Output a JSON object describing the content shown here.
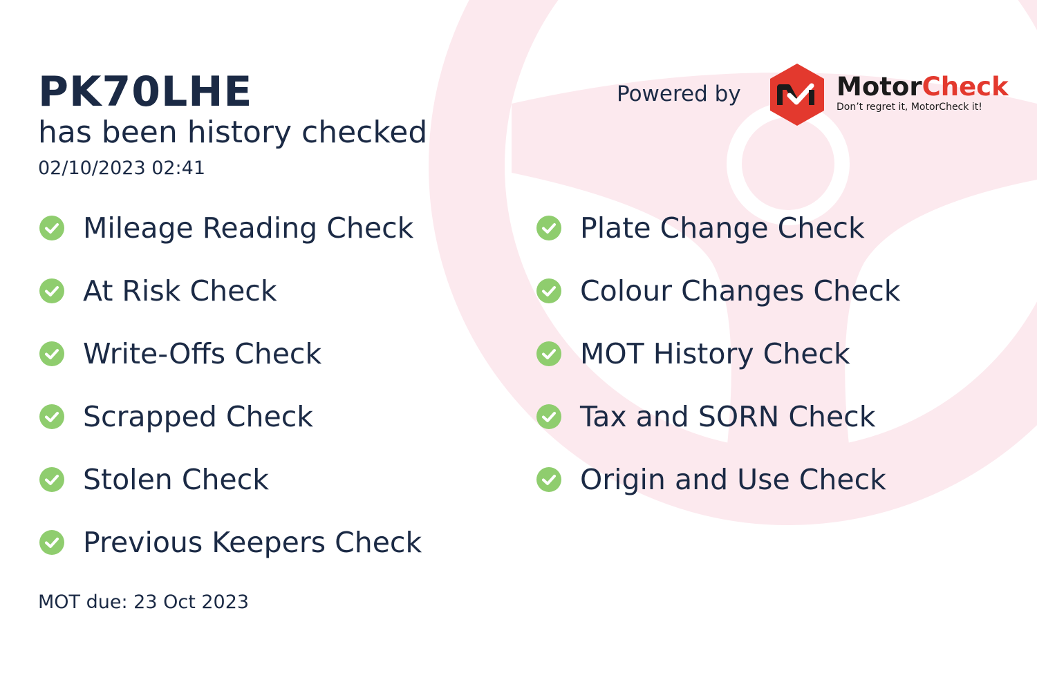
{
  "header": {
    "plate": "PK70LHE",
    "subtitle": "has been history checked",
    "timestamp": "02/10/2023 02:41"
  },
  "branding": {
    "powered_by": "Powered by",
    "brand_part1": "Motor",
    "brand_part2": "Check",
    "tagline": "Don’t regret it, MotorCheck it!",
    "brand_color": "#e3392e"
  },
  "checks_left": [
    "Mileage Reading Check",
    "At Risk Check",
    "Write-Offs Check",
    "Scrapped Check",
    "Stolen Check",
    "Previous Keepers Check"
  ],
  "checks_right": [
    "Plate Change Check",
    "Colour Changes Check",
    "MOT History Check",
    "Tax and SORN Check",
    "Origin and Use Check"
  ],
  "check_icon": "check-circle-icon",
  "check_color": "#8fcd6e",
  "footer": {
    "mot_due": "MOT due: 23 Oct 2023"
  }
}
